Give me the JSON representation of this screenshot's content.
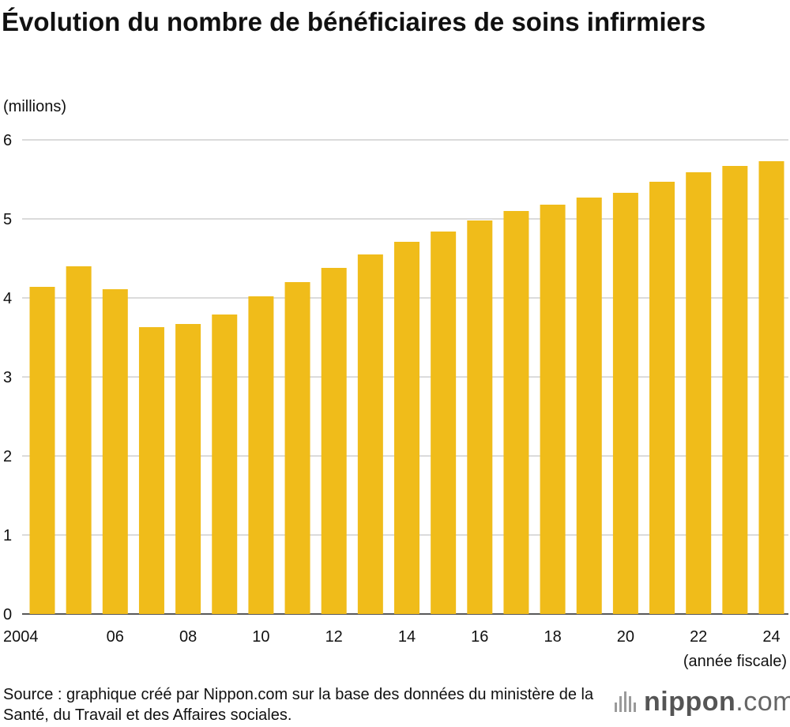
{
  "chart_data": {
    "type": "bar",
    "title": "Évolution du nombre de bénéficiaires de soins infirmiers",
    "ylabel": "(millions)",
    "xlabel": "(année fiscale)",
    "ylim": [
      0,
      6
    ],
    "yticks": [
      0,
      1,
      2,
      3,
      4,
      5,
      6
    ],
    "grid": true,
    "categories": [
      "2004",
      "2005",
      "2006",
      "2007",
      "2008",
      "2009",
      "2010",
      "2011",
      "2012",
      "2013",
      "2014",
      "2015",
      "2016",
      "2017",
      "2018",
      "2019",
      "2020",
      "2021",
      "2022",
      "2023",
      "2024"
    ],
    "xtick_labels": [
      "2004",
      "",
      "06",
      "",
      "08",
      "",
      "10",
      "",
      "12",
      "",
      "14",
      "",
      "16",
      "",
      "18",
      "",
      "20",
      "",
      "22",
      "",
      "24"
    ],
    "values": [
      4.14,
      4.4,
      4.11,
      3.63,
      3.67,
      3.79,
      4.02,
      4.2,
      4.38,
      4.55,
      4.71,
      4.84,
      4.98,
      5.1,
      5.18,
      5.27,
      5.33,
      5.47,
      5.59,
      5.67,
      5.73
    ],
    "bar_color": "#f0bc1a"
  },
  "source": "Source : graphique créé par Nippon.com sur la base des données du ministère de la Santé, du Travail et des Affaires sociales.",
  "logo": {
    "name": "nippon",
    "suffix": ".com"
  }
}
